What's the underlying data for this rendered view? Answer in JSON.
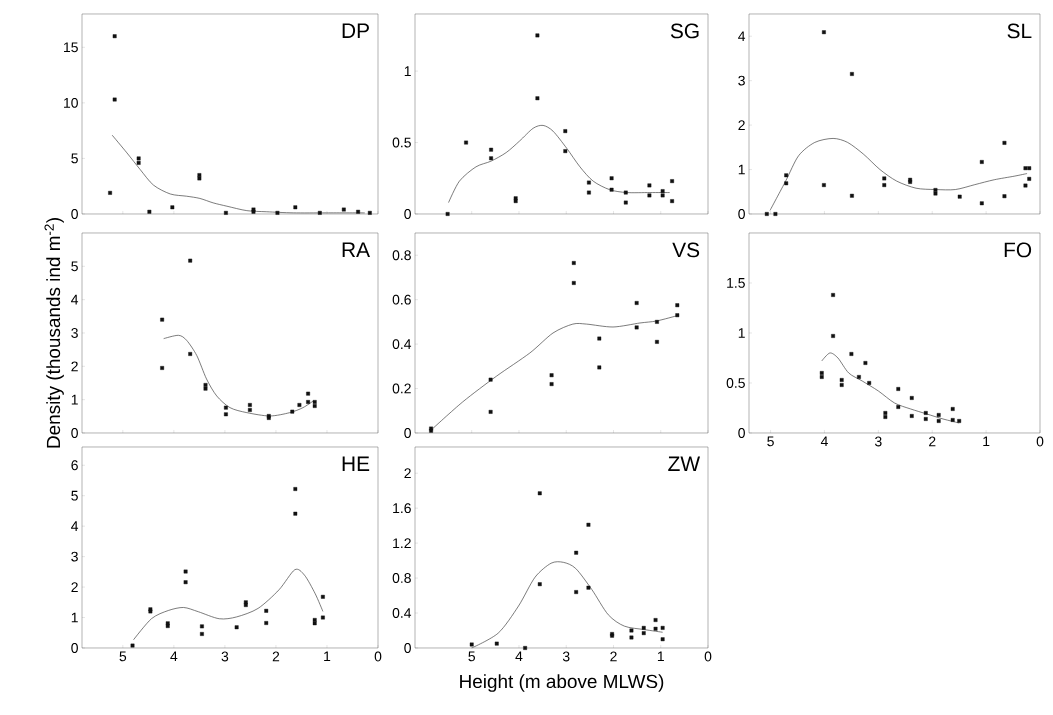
{
  "chart_data": [
    {
      "type": "scatter",
      "title": "DP",
      "xlim": [
        5.8,
        0
      ],
      "xticks": [
        5,
        4,
        3,
        2,
        1,
        0
      ],
      "ylim": [
        0,
        18
      ],
      "yticks": [
        0,
        5,
        10,
        15
      ],
      "tick_labels": "y",
      "series": [
        {
          "type": "scatter",
          "marker": "square",
          "color": "#111111",
          "x": [
            5.25,
            5.16,
            5.16,
            4.69,
            4.69,
            4.48,
            4.03,
            3.5,
            3.5,
            2.98,
            2.44,
            2.44,
            1.97,
            1.62,
            1.14,
            0.67,
            0.39,
            0.16
          ],
          "values": [
            1.9,
            16.0,
            10.3,
            5.0,
            4.6,
            0.2,
            0.6,
            3.5,
            3.2,
            0.1,
            0.4,
            0.2,
            0.1,
            0.6,
            0.1,
            0.4,
            0.2,
            0.1
          ]
        },
        {
          "type": "line",
          "marker": "none",
          "color": "#444444",
          "x": [
            5.21,
            4.92,
            4.66,
            4.4,
            4.07,
            3.75,
            3.49,
            3.23,
            2.96,
            2.57,
            2.18,
            1.66,
            1.01,
            0.26
          ],
          "values": [
            7.1,
            5.5,
            4.0,
            2.6,
            1.8,
            1.6,
            1.4,
            1.0,
            0.7,
            0.3,
            0.2,
            0.1,
            0.1,
            0.1
          ]
        }
      ]
    },
    {
      "type": "scatter",
      "title": "SG",
      "xlim": [
        6.2,
        0
      ],
      "xticks": [
        5,
        4,
        3,
        2,
        1,
        0
      ],
      "ylim": [
        0,
        1.4
      ],
      "yticks": [
        0,
        0.5,
        1
      ],
      "tick_labels": "y",
      "series": [
        {
          "type": "scatter",
          "marker": "square",
          "color": "#111111",
          "x": [
            5.51,
            5.12,
            4.59,
            4.59,
            4.07,
            4.07,
            3.61,
            3.61,
            3.02,
            3.02,
            2.52,
            2.52,
            2.04,
            2.04,
            1.74,
            1.74,
            1.24,
            1.24,
            0.96,
            0.96,
            0.76,
            0.76
          ],
          "values": [
            0,
            0.5,
            0.45,
            0.39,
            0.11,
            0.09,
            1.25,
            0.81,
            0.58,
            0.44,
            0.22,
            0.15,
            0.25,
            0.17,
            0.15,
            0.08,
            0.2,
            0.13,
            0.16,
            0.13,
            0.23,
            0.09
          ]
        },
        {
          "type": "line",
          "marker": "none",
          "color": "#444444",
          "x": [
            5.49,
            5.26,
            4.91,
            4.59,
            4.27,
            3.99,
            3.7,
            3.49,
            3.28,
            2.99,
            2.71,
            2.43,
            2.08,
            1.72,
            1.23,
            0.81
          ],
          "values": [
            0.08,
            0.23,
            0.33,
            0.37,
            0.43,
            0.51,
            0.6,
            0.62,
            0.58,
            0.46,
            0.33,
            0.23,
            0.17,
            0.15,
            0.15,
            0.15
          ]
        }
      ]
    },
    {
      "type": "scatter",
      "title": "SL",
      "xlim": [
        5.4,
        0
      ],
      "xticks": [
        5,
        4,
        3,
        2,
        1,
        0
      ],
      "ylim": [
        0,
        4.5
      ],
      "yticks": [
        0,
        1,
        2,
        3,
        4
      ],
      "tick_labels": "y",
      "series": [
        {
          "type": "scatter",
          "marker": "square",
          "color": "#111111",
          "x": [
            5.07,
            4.91,
            4.71,
            4.71,
            4.01,
            4.01,
            3.49,
            3.49,
            2.89,
            2.89,
            2.41,
            2.41,
            1.94,
            1.94,
            1.49,
            1.08,
            1.08,
            0.66,
            0.66,
            0.27,
            0.2,
            0.27,
            0.2
          ],
          "values": [
            0,
            0,
            0.87,
            0.69,
            4.09,
            0.65,
            3.15,
            0.41,
            0.8,
            0.65,
            0.77,
            0.72,
            0.54,
            0.46,
            0.39,
            1.17,
            0.24,
            1.6,
            0.4,
            1.03,
            1.03,
            0.64,
            0.79
          ]
        },
        {
          "type": "line",
          "marker": "none",
          "color": "#444444",
          "x": [
            5.01,
            4.72,
            4.48,
            4.18,
            3.84,
            3.57,
            3.27,
            2.97,
            2.66,
            2.3,
            1.94,
            1.57,
            1.21,
            0.85,
            0.48,
            0.24
          ],
          "values": [
            0.08,
            0.74,
            1.31,
            1.61,
            1.7,
            1.61,
            1.34,
            1.0,
            0.74,
            0.58,
            0.55,
            0.55,
            0.66,
            0.77,
            0.85,
            0.91
          ]
        }
      ]
    },
    {
      "type": "scatter",
      "title": "RA",
      "ylabel": "Density (thousands ind m$^{-2}$)",
      "xlim": [
        5.8,
        0
      ],
      "xticks": [
        5,
        4,
        3,
        2,
        1,
        0
      ],
      "ylim": [
        0,
        6
      ],
      "yticks": [
        0,
        1,
        2,
        3,
        4,
        5
      ],
      "tick_labels": "y",
      "series": [
        {
          "type": "scatter",
          "marker": "square",
          "color": "#111111",
          "x": [
            4.23,
            4.23,
            3.68,
            3.68,
            3.38,
            3.38,
            2.98,
            2.98,
            2.51,
            2.51,
            2.14,
            2.14,
            1.68,
            1.54,
            1.37,
            1.37,
            1.24,
            1.24
          ],
          "values": [
            3.4,
            1.95,
            5.17,
            2.37,
            1.44,
            1.33,
            0.76,
            0.56,
            0.84,
            0.69,
            0.51,
            0.45,
            0.64,
            0.84,
            1.18,
            0.93,
            0.93,
            0.81
          ]
        },
        {
          "type": "line",
          "marker": "none",
          "color": "#444444",
          "x": [
            4.2,
            3.91,
            3.75,
            3.55,
            3.36,
            3.16,
            2.9,
            2.57,
            2.12,
            1.73,
            1.47,
            1.27
          ],
          "values": [
            2.83,
            2.93,
            2.78,
            2.32,
            1.62,
            1.11,
            0.76,
            0.61,
            0.51,
            0.61,
            0.76,
            0.96
          ]
        }
      ]
    },
    {
      "type": "scatter",
      "title": "VS",
      "xlim": [
        6.2,
        0
      ],
      "xticks": [
        5,
        4,
        3,
        2,
        1,
        0
      ],
      "ylim": [
        0,
        0.9
      ],
      "yticks": [
        0,
        0.2,
        0.4,
        0.6,
        0.8
      ],
      "tick_labels": "y",
      "series": [
        {
          "type": "scatter",
          "marker": "square",
          "color": "#111111",
          "x": [
            5.86,
            5.86,
            4.6,
            4.6,
            3.31,
            3.31,
            2.84,
            2.84,
            2.3,
            2.3,
            1.51,
            1.51,
            1.08,
            1.08,
            0.65,
            0.65
          ],
          "values": [
            0.02,
            0.01,
            0.24,
            0.095,
            0.26,
            0.22,
            0.765,
            0.675,
            0.425,
            0.295,
            0.585,
            0.475,
            0.5,
            0.41,
            0.575,
            0.53
          ]
        },
        {
          "type": "line",
          "marker": "none",
          "color": "#444444",
          "x": [
            5.85,
            5.19,
            4.48,
            3.77,
            3.28,
            2.86,
            2.57,
            2.01,
            1.44,
            1.09,
            0.65
          ],
          "values": [
            0.015,
            0.14,
            0.255,
            0.36,
            0.45,
            0.49,
            0.49,
            0.477,
            0.495,
            0.504,
            0.528
          ]
        }
      ]
    },
    {
      "type": "scatter",
      "title": "FO",
      "xlim": [
        5.4,
        0
      ],
      "xticks": [
        5,
        4,
        3,
        2,
        1,
        0
      ],
      "ylim": [
        0,
        2
      ],
      "yticks": [
        0,
        0.5,
        1,
        1.5
      ],
      "series": [
        {
          "type": "scatter",
          "marker": "square",
          "color": "#111111",
          "x": [
            4.05,
            4.05,
            3.84,
            3.84,
            3.68,
            3.68,
            3.5,
            3.36,
            3.24,
            3.17,
            2.87,
            2.87,
            2.63,
            2.63,
            2.38,
            2.38,
            2.12,
            2.12,
            1.88,
            1.88,
            1.62,
            1.62,
            1.5
          ],
          "values": [
            0.6,
            0.56,
            1.38,
            0.97,
            0.53,
            0.48,
            0.79,
            0.56,
            0.7,
            0.5,
            0.2,
            0.16,
            0.44,
            0.26,
            0.35,
            0.17,
            0.2,
            0.14,
            0.12,
            0.18,
            0.24,
            0.13,
            0.12
          ]
        },
        {
          "type": "line",
          "marker": "none",
          "color": "#444444",
          "x": [
            4.05,
            3.9,
            3.75,
            3.55,
            3.3,
            3.0,
            2.7,
            2.4,
            2.1,
            1.8,
            1.5
          ],
          "values": [
            0.72,
            0.8,
            0.75,
            0.6,
            0.52,
            0.42,
            0.3,
            0.24,
            0.19,
            0.14,
            0.1
          ]
        }
      ]
    },
    {
      "type": "scatter",
      "title": "HE",
      "xlim": [
        5.8,
        0
      ],
      "xticks": [
        5,
        4,
        3,
        2,
        1,
        0
      ],
      "ylim": [
        0,
        6.6
      ],
      "yticks": [
        0,
        1,
        2,
        3,
        4,
        5,
        6
      ],
      "series": [
        {
          "type": "scatter",
          "marker": "square",
          "color": "#111111",
          "x": [
            4.81,
            4.46,
            4.46,
            4.12,
            4.12,
            3.77,
            3.77,
            3.45,
            3.45,
            2.77,
            2.59,
            2.59,
            2.19,
            2.19,
            1.62,
            1.62,
            1.24,
            1.24,
            1.08,
            1.08
          ],
          "values": [
            0.08,
            1.27,
            1.2,
            0.81,
            0.72,
            2.51,
            2.16,
            0.71,
            0.46,
            0.68,
            1.5,
            1.41,
            1.22,
            0.82,
            5.22,
            4.41,
            0.92,
            0.81,
            1.68,
            1.0
          ]
        },
        {
          "type": "line",
          "marker": "none",
          "color": "#444444",
          "x": [
            4.79,
            4.44,
            4.11,
            3.81,
            3.52,
            3.11,
            2.77,
            2.35,
            1.94,
            1.63,
            1.44,
            1.23,
            1.08
          ],
          "values": [
            0.27,
            0.96,
            1.23,
            1.33,
            1.19,
            0.96,
            1.02,
            1.3,
            1.91,
            2.57,
            2.39,
            1.78,
            1.2
          ]
        }
      ]
    },
    {
      "type": "scatter",
      "title": "ZW",
      "xlabel": "Height (m above MLWS)",
      "xlim": [
        6.2,
        0
      ],
      "xticks": [
        5,
        4,
        3,
        2,
        1,
        0
      ],
      "ylim": [
        0,
        2.3
      ],
      "yticks": [
        0,
        0.4,
        0.8,
        1.2,
        1.6,
        2
      ],
      "series": [
        {
          "type": "scatter",
          "marker": "square",
          "color": "#111111",
          "x": [
            5.0,
            4.47,
            3.87,
            3.56,
            3.56,
            2.79,
            2.79,
            2.53,
            2.53,
            2.03,
            2.03,
            1.62,
            1.62,
            1.36,
            1.36,
            1.11,
            1.11,
            0.96,
            0.96
          ],
          "values": [
            0.04,
            0.05,
            0,
            1.77,
            0.73,
            1.09,
            0.64,
            1.41,
            0.69,
            0.16,
            0.14,
            0.2,
            0.12,
            0.23,
            0.17,
            0.32,
            0.22,
            0.23,
            0.1
          ]
        },
        {
          "type": "line",
          "marker": "none",
          "color": "#444444",
          "x": [
            5.0,
            4.44,
            4.01,
            3.66,
            3.32,
            3.06,
            2.8,
            2.46,
            2.11,
            1.77,
            1.34,
            0.96
          ],
          "values": [
            0,
            0.17,
            0.48,
            0.81,
            0.97,
            0.98,
            0.91,
            0.67,
            0.38,
            0.25,
            0.21,
            0.18
          ]
        }
      ]
    }
  ]
}
